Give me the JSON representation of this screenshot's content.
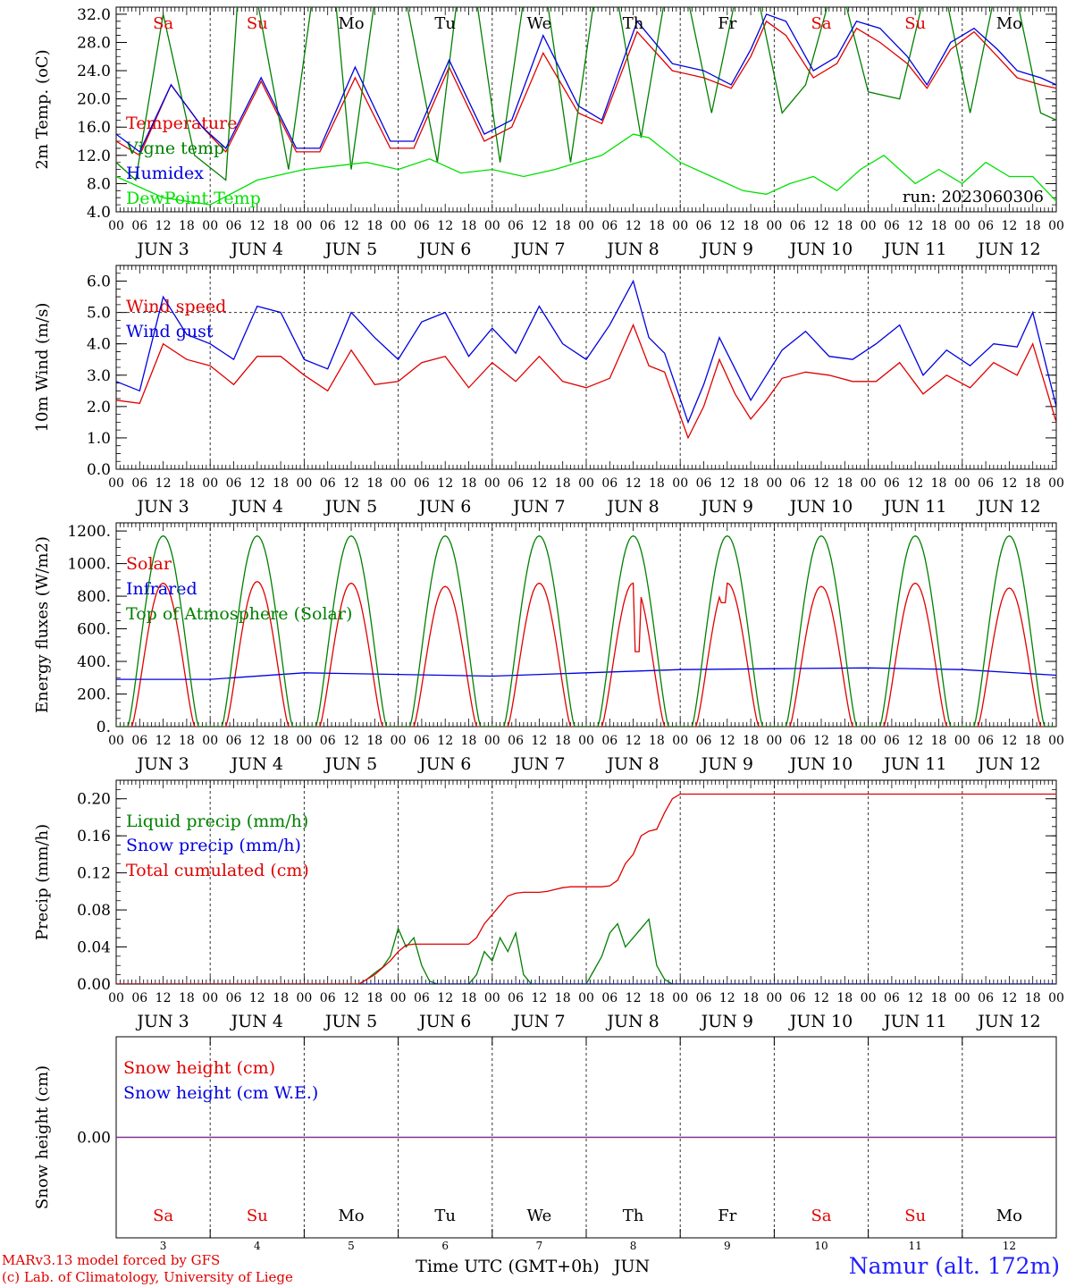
{
  "run_label": "run: 2023060306",
  "month": "JUN",
  "days": [
    {
      "abbr": "Sa",
      "num": "3",
      "weekend": true
    },
    {
      "abbr": "Su",
      "num": "4",
      "weekend": true
    },
    {
      "abbr": "Mo",
      "num": "5",
      "weekend": false
    },
    {
      "abbr": "Tu",
      "num": "6",
      "weekend": false
    },
    {
      "abbr": "We",
      "num": "7",
      "weekend": false
    },
    {
      "abbr": "Th",
      "num": "8",
      "weekend": false
    },
    {
      "abbr": "Fr",
      "num": "9",
      "weekend": false
    },
    {
      "abbr": "Sa",
      "num": "10",
      "weekend": true
    },
    {
      "abbr": "Su",
      "num": "11",
      "weekend": true
    },
    {
      "abbr": "Mo",
      "num": "12",
      "weekend": false
    }
  ],
  "hour_ticks": [
    "00",
    "06",
    "12",
    "18"
  ],
  "end_hour": "00",
  "xlabel": "Time UTC (GMT+0h)",
  "xlabel_month": "JUN",
  "footer": {
    "model": "MARv3.13 model forced by GFS",
    "copyright": "(c) Lab. of Climatology, University of Liege",
    "station": "Namur (alt. 172m)"
  },
  "colors": {
    "red": "#e00000",
    "green": "#008000",
    "blue": "#0000e0",
    "light_green": "#00e000",
    "purple": "#7030a0"
  },
  "chart_data": [
    {
      "type": "line",
      "ylabel": "2m Temp. (oC)",
      "ylim": [
        4,
        33
      ],
      "yticks": [
        "4.0",
        "8.0",
        "12.0",
        "16.0",
        "20.0",
        "24.0",
        "28.0",
        "32.0"
      ],
      "x_unit": "hours since JUN 3 00 UTC",
      "xlim": [
        0,
        240
      ],
      "show_day_names": true,
      "legend": "top-left",
      "series": [
        {
          "name": "Temperature",
          "color": "#e00000",
          "x": [
            0,
            6,
            14,
            22,
            28,
            37,
            46,
            52,
            61,
            70,
            76,
            85,
            94,
            101,
            109,
            118,
            124,
            133,
            142,
            150,
            157,
            162,
            166,
            171,
            178,
            184,
            189,
            195,
            202,
            207,
            213,
            219,
            225,
            230,
            236,
            240
          ],
          "y": [
            14,
            12,
            22,
            16,
            12.5,
            22.5,
            12.5,
            12.5,
            23,
            13,
            13,
            24.5,
            14,
            16,
            26.5,
            18,
            16.5,
            29.5,
            24,
            23,
            21.5,
            26,
            31,
            29,
            23,
            25,
            30,
            28,
            25,
            21.5,
            27,
            29.5,
            26,
            23,
            22,
            21.5
          ]
        },
        {
          "name": "Vigne temp",
          "color": "#008000",
          "x": [
            0,
            5,
            12,
            20,
            28,
            31,
            36,
            44,
            50,
            56,
            60,
            66,
            74,
            82,
            87,
            92,
            98,
            104,
            110,
            116,
            122,
            128,
            134,
            140,
            146,
            152,
            158,
            164,
            170,
            176,
            182,
            186,
            192,
            200,
            206,
            212,
            218,
            224,
            230,
            236,
            240
          ],
          "y": [
            11,
            8.5,
            32,
            12,
            8.5,
            34,
            34,
            10,
            34,
            34,
            10,
            34,
            34,
            11,
            34,
            34,
            11,
            34,
            34,
            11,
            34,
            34,
            14.5,
            34,
            34,
            18,
            34,
            34,
            18,
            22,
            34,
            34,
            21,
            20,
            34,
            34,
            18,
            34,
            34,
            18,
            17
          ]
        },
        {
          "name": "Humidex",
          "color": "#0000e0",
          "x": [
            0,
            6,
            14,
            22,
            28,
            37,
            46,
            52,
            61,
            70,
            76,
            85,
            94,
            101,
            109,
            118,
            124,
            133,
            142,
            150,
            157,
            162,
            166,
            171,
            178,
            184,
            189,
            195,
            202,
            207,
            213,
            219,
            225,
            230,
            236,
            240
          ],
          "y": [
            15,
            12.5,
            22,
            16,
            13,
            23,
            13,
            13,
            24.5,
            14,
            14,
            25.5,
            15,
            17,
            29,
            19,
            17,
            31,
            25,
            24,
            22,
            27,
            32,
            31,
            24,
            26,
            31,
            30,
            26,
            22,
            28,
            30,
            27,
            24,
            23,
            22
          ]
        },
        {
          "name": "DewPoint Temp",
          "color": "#00e000",
          "x": [
            0,
            12,
            24,
            36,
            48,
            56,
            64,
            72,
            80,
            88,
            96,
            104,
            112,
            124,
            132,
            136,
            144,
            152,
            160,
            166,
            172,
            178,
            184,
            190,
            196,
            204,
            210,
            216,
            222,
            228,
            234,
            240
          ],
          "y": [
            9,
            6,
            5,
            8.5,
            10,
            10.5,
            11,
            10,
            11.5,
            9.5,
            10,
            9,
            10,
            12,
            15,
            14.5,
            11,
            9,
            7,
            6.5,
            8,
            9,
            7,
            10,
            12,
            8,
            10,
            8,
            11,
            9,
            9,
            5.5
          ]
        }
      ],
      "annotations": [
        "run: 2023060306"
      ]
    },
    {
      "type": "line",
      "ylabel": "10m Wind (m/s)",
      "ylim": [
        0,
        6.5
      ],
      "yticks": [
        "0.0",
        "1.0",
        "2.0",
        "3.0",
        "4.0",
        "5.0",
        "6.0"
      ],
      "reference_line": 5.0,
      "xlim": [
        0,
        240
      ],
      "legend": "top-left",
      "series": [
        {
          "name": "Wind speed",
          "color": "#e00000",
          "x": [
            0,
            6,
            12,
            18,
            24,
            30,
            36,
            42,
            48,
            54,
            60,
            66,
            72,
            78,
            84,
            90,
            96,
            102,
            108,
            114,
            120,
            126,
            132,
            136,
            140,
            146,
            150,
            154,
            158,
            162,
            166,
            170,
            176,
            182,
            188,
            194,
            200,
            206,
            212,
            218,
            224,
            230,
            234,
            240
          ],
          "y": [
            2.2,
            2.1,
            4.0,
            3.5,
            3.3,
            2.7,
            3.6,
            3.6,
            3.0,
            2.5,
            3.8,
            2.7,
            2.8,
            3.4,
            3.6,
            2.6,
            3.4,
            2.8,
            3.6,
            2.8,
            2.6,
            2.9,
            4.6,
            3.3,
            3.1,
            1.0,
            2.0,
            3.5,
            2.4,
            1.6,
            2.2,
            2.9,
            3.1,
            3.0,
            2.8,
            2.8,
            3.4,
            2.4,
            3.0,
            2.6,
            3.4,
            3.0,
            4.0,
            1.5
          ]
        },
        {
          "name": "Wind gust",
          "color": "#0000e0",
          "x": [
            0,
            6,
            12,
            18,
            24,
            30,
            36,
            42,
            48,
            54,
            60,
            66,
            72,
            78,
            84,
            90,
            96,
            102,
            108,
            114,
            120,
            126,
            132,
            136,
            140,
            146,
            150,
            154,
            158,
            162,
            166,
            170,
            176,
            182,
            188,
            194,
            200,
            206,
            212,
            218,
            224,
            230,
            234,
            240
          ],
          "y": [
            2.8,
            2.5,
            5.5,
            4.3,
            4.0,
            3.5,
            5.2,
            5.0,
            3.5,
            3.2,
            5.0,
            4.2,
            3.5,
            4.7,
            5.0,
            3.6,
            4.5,
            3.7,
            5.2,
            4.0,
            3.5,
            4.6,
            6.0,
            4.2,
            3.7,
            1.5,
            2.7,
            4.2,
            3.2,
            2.2,
            3.0,
            3.8,
            4.4,
            3.6,
            3.5,
            4.0,
            4.6,
            3.0,
            3.8,
            3.3,
            4.0,
            3.9,
            5.0,
            2.0
          ]
        }
      ]
    },
    {
      "type": "line",
      "ylabel": "Energy fluxes (W/m2)",
      "ylim": [
        0,
        1250
      ],
      "yticks": [
        "0.",
        "200.",
        "400.",
        "600.",
        "800.",
        "1000.",
        "1200."
      ],
      "xlim": [
        0,
        240
      ],
      "legend": "top-left",
      "series": [
        {
          "name": "Solar",
          "color": "#e00000",
          "shape": "daily-bell",
          "sunrise_h": 4,
          "sunset_h": 20,
          "daily_peak": [
            880,
            890,
            880,
            860,
            880,
            880,
            880,
            860,
            880,
            850
          ],
          "dips": [
            {
              "x": 133,
              "y": 460
            },
            {
              "x": 155,
              "y": 760
            }
          ]
        },
        {
          "name": "Infrared",
          "color": "#0000e0",
          "x": [
            0,
            24,
            48,
            72,
            96,
            120,
            144,
            168,
            192,
            216,
            240
          ],
          "y": [
            290,
            290,
            330,
            320,
            310,
            330,
            350,
            355,
            360,
            350,
            315
          ]
        },
        {
          "name": "Top of Atmosphere (Solar)",
          "color": "#008000",
          "shape": "daily-bell",
          "sunrise_h": 3,
          "sunset_h": 21,
          "daily_peak": [
            1170,
            1170,
            1170,
            1170,
            1170,
            1170,
            1170,
            1170,
            1170,
            1170
          ]
        }
      ]
    },
    {
      "type": "line",
      "ylabel": "Precip (mm/h)",
      "ylim": [
        0,
        0.22
      ],
      "yticks": [
        "0.00",
        "0.04",
        "0.08",
        "0.12",
        "0.16",
        "0.20"
      ],
      "xlim": [
        0,
        240
      ],
      "legend": "top-left",
      "series": [
        {
          "name": "Liquid precip (mm/h)",
          "color": "#008000",
          "x": [
            0,
            62,
            64,
            66,
            68,
            70,
            72,
            74,
            76,
            78,
            80,
            82,
            84,
            86,
            88,
            90,
            92,
            94,
            96,
            98,
            100,
            102,
            104,
            106,
            108,
            110,
            112,
            114,
            116,
            118,
            120,
            122,
            124,
            126,
            128,
            130,
            132,
            134,
            136,
            138,
            140,
            142,
            144,
            240
          ],
          "y": [
            0,
            0,
            0.005,
            0.012,
            0.018,
            0.03,
            0.06,
            0.04,
            0.05,
            0.02,
            0.003,
            0,
            0,
            0,
            0,
            0,
            0.01,
            0.035,
            0.025,
            0.05,
            0.035,
            0.055,
            0.01,
            0,
            0,
            0,
            0,
            0,
            0,
            0,
            0,
            0.015,
            0.03,
            0.055,
            0.065,
            0.04,
            0.05,
            0.06,
            0.07,
            0.02,
            0.005,
            0,
            0,
            0
          ]
        },
        {
          "name": "Snow precip (mm/h)",
          "color": "#0000e0",
          "x": [
            0,
            240
          ],
          "y": [
            0,
            0
          ]
        },
        {
          "name": "Total cumulated (cm)",
          "color": "#e00000",
          "x": [
            0,
            62,
            66,
            70,
            72,
            74,
            76,
            80,
            82,
            84,
            86,
            90,
            92,
            94,
            96,
            98,
            100,
            102,
            104,
            108,
            110,
            112,
            114,
            116,
            118,
            122,
            124,
            126,
            128,
            130,
            132,
            134,
            136,
            138,
            140,
            142,
            144,
            240
          ],
          "y": [
            0,
            0,
            0.01,
            0.025,
            0.035,
            0.042,
            0.043,
            0.043,
            0.043,
            0.043,
            0.043,
            0.043,
            0.05,
            0.065,
            0.075,
            0.085,
            0.095,
            0.098,
            0.099,
            0.099,
            0.1,
            0.102,
            0.104,
            0.105,
            0.105,
            0.105,
            0.105,
            0.106,
            0.112,
            0.13,
            0.14,
            0.16,
            0.165,
            0.167,
            0.185,
            0.2,
            0.205,
            0.205
          ]
        }
      ]
    },
    {
      "type": "line",
      "ylabel": "Snow height (cm)",
      "ylim": [
        -0.01,
        0.01
      ],
      "yticks": [
        "0.00"
      ],
      "xlim": [
        0,
        240
      ],
      "legend": "top-left",
      "series": [
        {
          "name": "Snow height (cm)",
          "color": "#e00000",
          "x": [
            0,
            240
          ],
          "y": [
            0,
            0
          ]
        },
        {
          "name": "Snow height (cm W.E.)",
          "color": "#0000e0",
          "x": [
            0,
            240
          ],
          "y": [
            0,
            0
          ]
        }
      ]
    }
  ]
}
